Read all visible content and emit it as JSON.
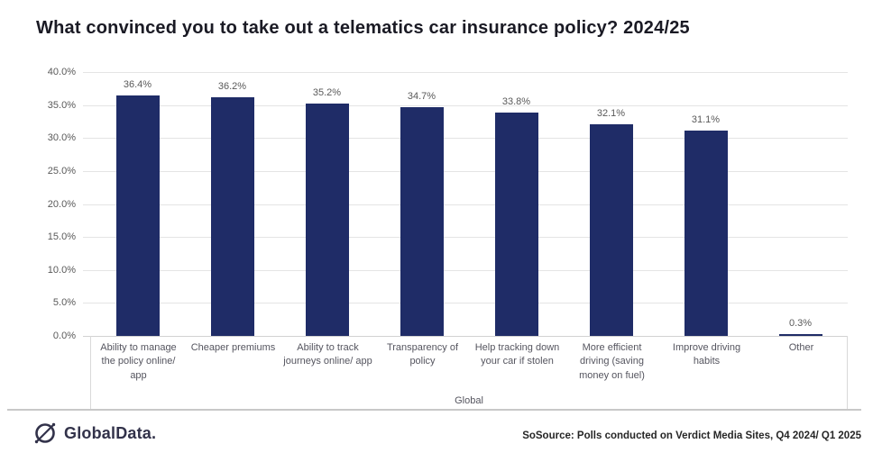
{
  "title": "What convinced you to take out a telematics car insurance policy? 2024/25",
  "chart_data": {
    "type": "bar",
    "title": "What convinced you to take out a telematics car insurance policy? 2024/25",
    "categories": [
      "Ability to manage the policy online/ app",
      "Cheaper premiums",
      "Ability to track journeys online/ app",
      "Transparency of policy",
      "Help tracking down your car if stolen",
      "More efficient driving (saving money on fuel)",
      "Improve driving habits",
      "Other"
    ],
    "values": [
      36.4,
      36.2,
      35.2,
      34.7,
      33.8,
      32.1,
      31.1,
      0.3
    ],
    "value_labels": [
      "36.4%",
      "36.2%",
      "35.2%",
      "34.7%",
      "33.8%",
      "32.1%",
      "31.1%",
      "0.3%"
    ],
    "group_label": "Global",
    "xlabel": "",
    "ylabel": "",
    "ylim": [
      0,
      40
    ],
    "ytick_step": 5,
    "ytick_labels": [
      "40.0%",
      "35.0%",
      "30.0%",
      "25.0%",
      "20.0%",
      "15.0%",
      "10.0%",
      "5.0%",
      "0.0%"
    ],
    "grid": true,
    "legend": "none",
    "bar_color": "#1F2C67"
  },
  "footer": {
    "logo_text": "GlobalData.",
    "source": "SoSource: Polls conducted on Verdict Media Sites, Q4 2024/ Q1 2025"
  }
}
